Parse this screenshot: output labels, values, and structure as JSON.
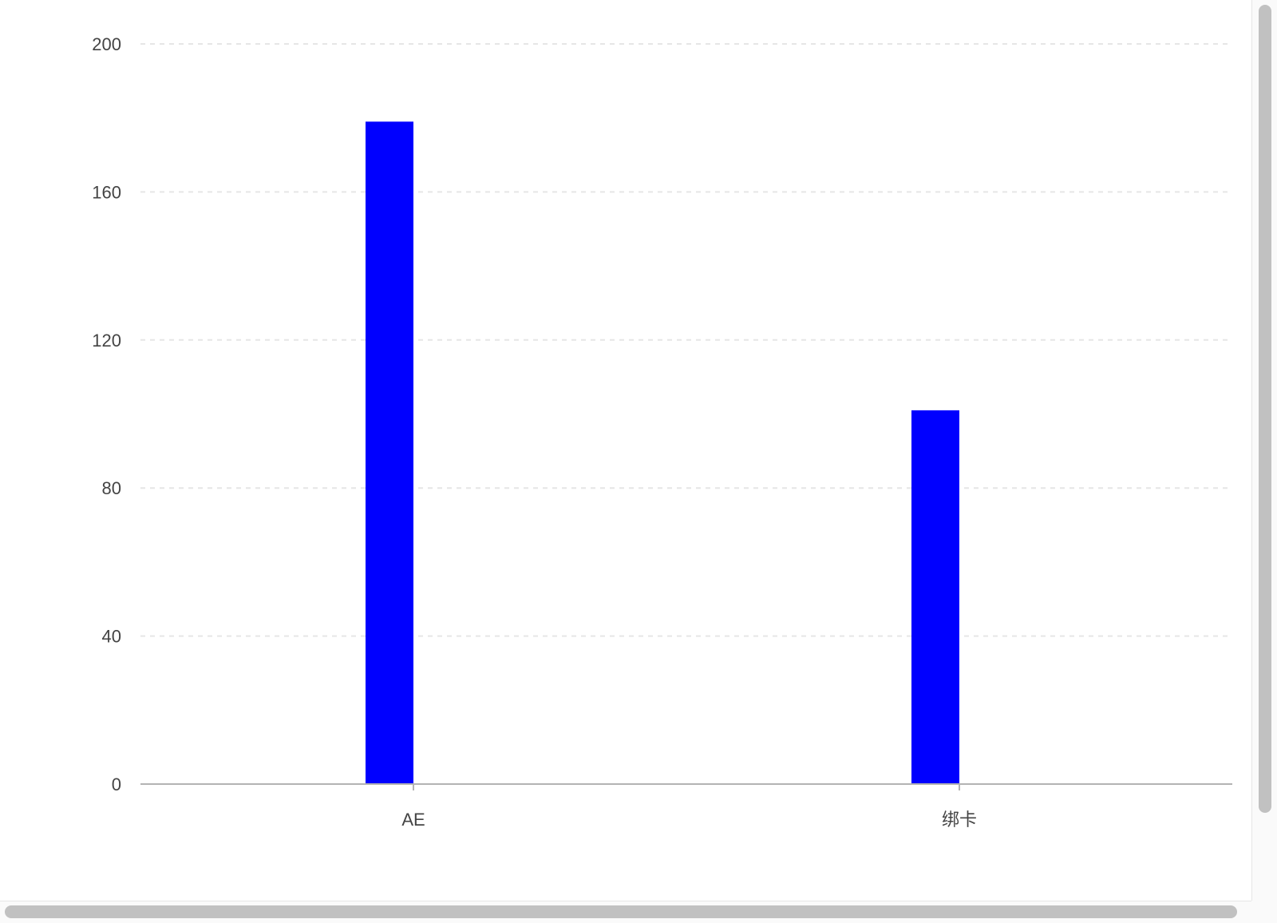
{
  "chart_data": {
    "type": "bar",
    "title": "",
    "xlabel": "",
    "ylabel": "",
    "categories": [
      "AE",
      "绑卡"
    ],
    "series": [
      {
        "values": [
          179,
          101
        ],
        "color": "#0000ff"
      }
    ],
    "ylim": [
      0,
      200
    ],
    "yticks": [
      0,
      40,
      80,
      120,
      160,
      200
    ],
    "grid": true,
    "legend": "none"
  },
  "colors": {
    "bar": "#0000ff",
    "grid": "#e6e6e6",
    "axis": "#b3b3b3",
    "tick_text": "#444444"
  },
  "scrollbars": {
    "vertical": true,
    "horizontal": true
  }
}
